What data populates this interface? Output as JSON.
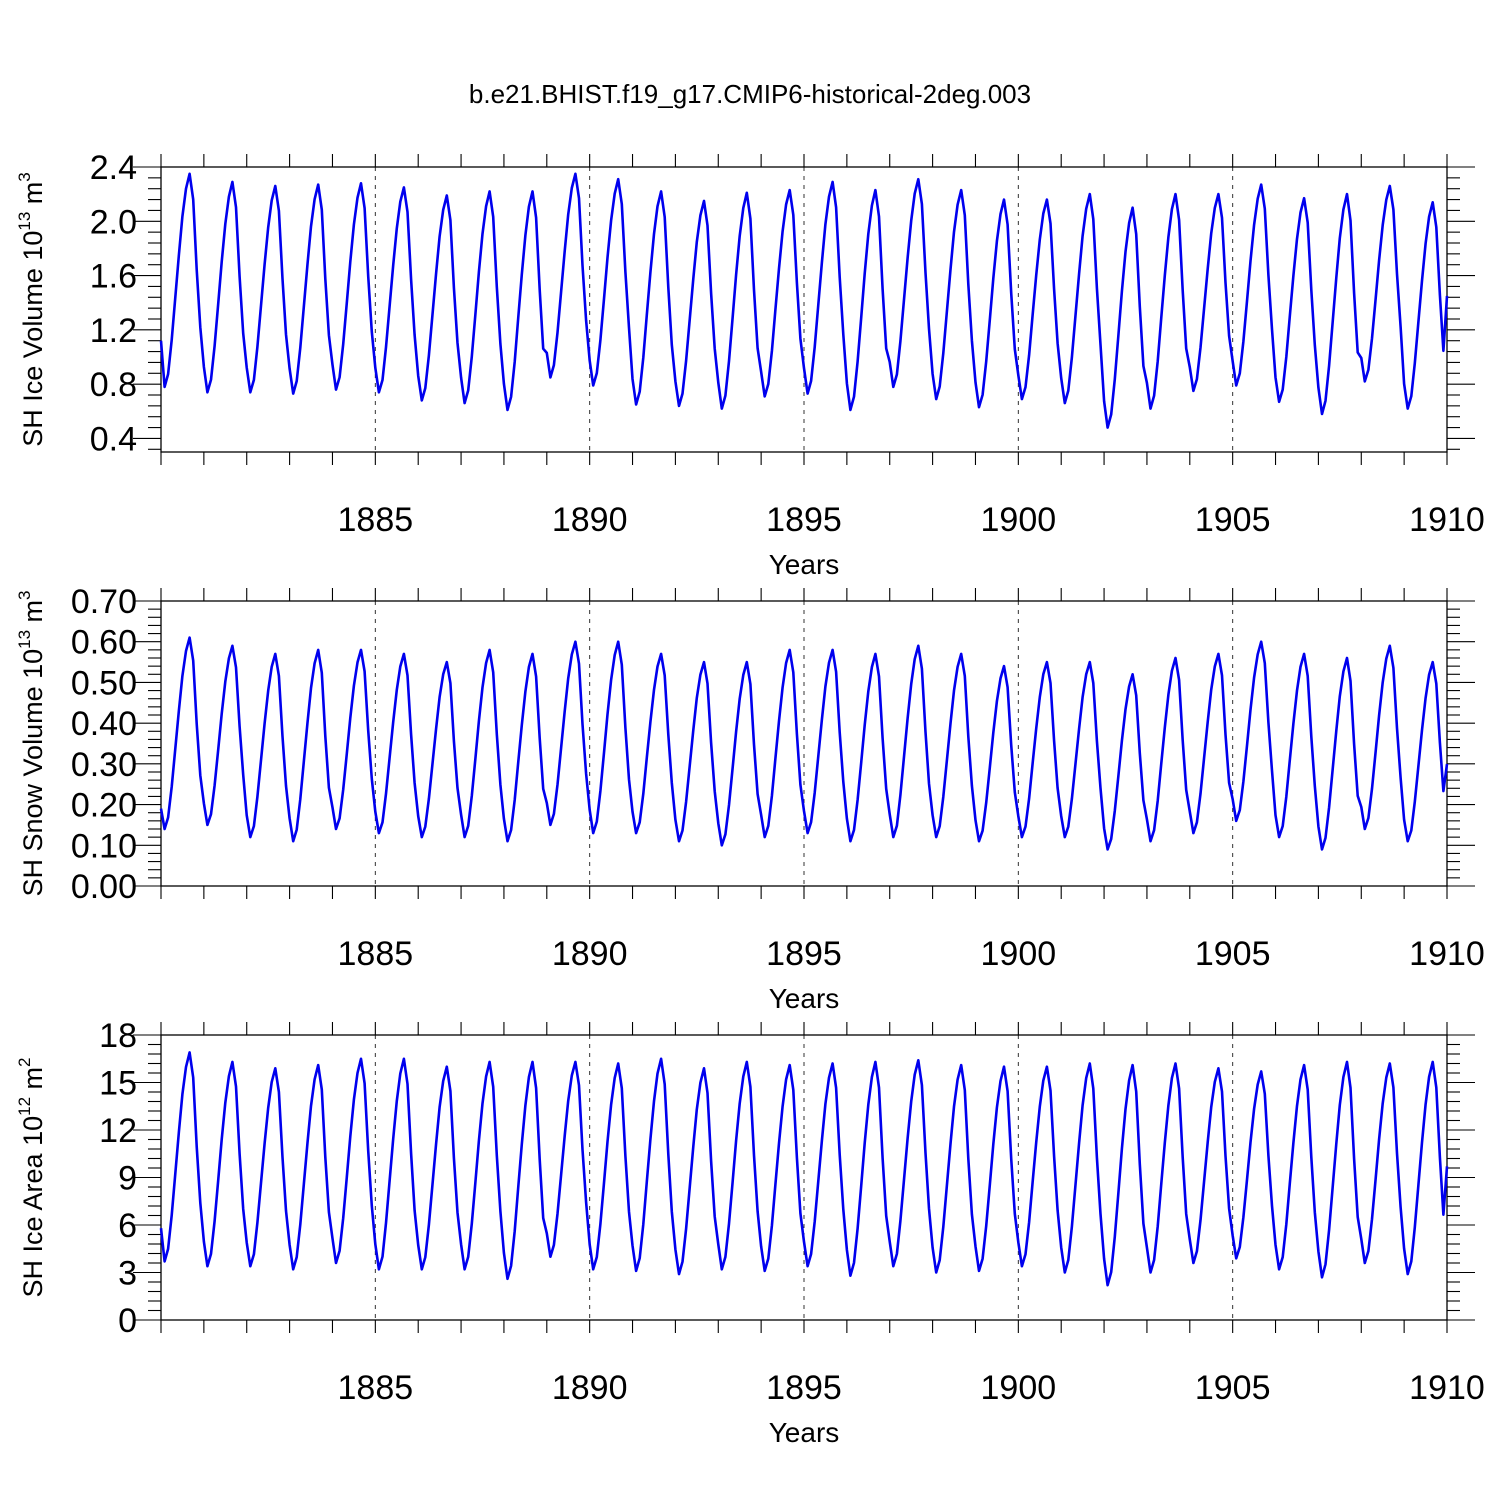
{
  "title": "b.e21.BHIST.f19_g17.CMIP6-historical-2deg.003",
  "chart_data": [
    {
      "type": "line",
      "name": "ice-volume",
      "ylabel": {
        "base": "SH Ice Volume 10",
        "exp": "13",
        "unit": " m",
        "unit_exp": "3"
      },
      "xlabel": "Years",
      "xlim": [
        1880,
        1910
      ],
      "ylim": [
        0.3,
        2.4
      ],
      "yticks": [
        0.4,
        0.8,
        1.2,
        1.6,
        2.0,
        2.4
      ],
      "ytick_labels": [
        "0.4",
        "0.8",
        "1.2",
        "1.6",
        "2.0",
        "2.4"
      ],
      "xticks": [
        1885,
        1890,
        1895,
        1900,
        1905,
        1910
      ],
      "xtick_labels": [
        "1885",
        "1890",
        "1895",
        "1900",
        "1905",
        "1910"
      ],
      "series": [
        {
          "name": "SH ice volume",
          "color": "#0000ee",
          "annual_max": [
            2.35,
            2.29,
            2.26,
            2.27,
            2.28,
            2.25,
            2.19,
            2.22,
            2.22,
            2.35,
            2.31,
            2.22,
            2.15,
            2.21,
            2.23,
            2.29,
            2.23,
            2.31,
            2.23,
            2.16,
            2.16,
            2.2,
            2.1,
            2.2,
            2.2,
            2.27,
            2.17,
            2.2,
            2.26,
            2.14
          ],
          "annual_min": [
            0.78,
            0.74,
            0.74,
            0.73,
            0.76,
            0.74,
            0.68,
            0.66,
            0.61,
            0.85,
            0.79,
            0.65,
            0.64,
            0.62,
            0.71,
            0.73,
            0.61,
            0.78,
            0.69,
            0.63,
            0.69,
            0.66,
            0.48,
            0.62,
            0.75,
            0.79,
            0.67,
            0.58,
            0.82,
            0.62
          ],
          "start_value": 1.12,
          "end_value": 1.45
        }
      ]
    },
    {
      "type": "line",
      "name": "snow-volume",
      "ylabel": {
        "base": "SH Snow Volume 10",
        "exp": "13",
        "unit": " m",
        "unit_exp": "3"
      },
      "xlabel": "Years",
      "xlim": [
        1880,
        1910
      ],
      "ylim": [
        0.0,
        0.7
      ],
      "yticks": [
        0.0,
        0.1,
        0.2,
        0.3,
        0.4,
        0.5,
        0.6,
        0.7
      ],
      "ytick_labels": [
        "0.00",
        "0.10",
        "0.20",
        "0.30",
        "0.40",
        "0.50",
        "0.60",
        "0.70"
      ],
      "xticks": [
        1885,
        1890,
        1895,
        1900,
        1905,
        1910
      ],
      "xtick_labels": [
        "1885",
        "1890",
        "1895",
        "1900",
        "1905",
        "1910"
      ],
      "series": [
        {
          "name": "SH snow volume",
          "color": "#0000ee",
          "annual_max": [
            0.61,
            0.59,
            0.57,
            0.58,
            0.58,
            0.57,
            0.55,
            0.58,
            0.57,
            0.6,
            0.6,
            0.57,
            0.55,
            0.55,
            0.58,
            0.58,
            0.57,
            0.59,
            0.57,
            0.54,
            0.55,
            0.55,
            0.52,
            0.56,
            0.57,
            0.6,
            0.57,
            0.56,
            0.59,
            0.55
          ],
          "annual_min": [
            0.14,
            0.15,
            0.12,
            0.11,
            0.14,
            0.13,
            0.12,
            0.12,
            0.11,
            0.15,
            0.13,
            0.13,
            0.11,
            0.1,
            0.12,
            0.13,
            0.11,
            0.12,
            0.12,
            0.11,
            0.12,
            0.12,
            0.09,
            0.11,
            0.13,
            0.16,
            0.12,
            0.09,
            0.14,
            0.11
          ],
          "start_value": 0.19,
          "end_value": 0.3
        }
      ]
    },
    {
      "type": "line",
      "name": "ice-area",
      "ylabel": {
        "base": "SH Ice Area 10",
        "exp": "12",
        "unit": " m",
        "unit_exp": "2"
      },
      "xlabel": "Years",
      "xlim": [
        1880,
        1910
      ],
      "ylim": [
        0,
        18
      ],
      "yticks": [
        0,
        3,
        6,
        9,
        12,
        15,
        18
      ],
      "ytick_labels": [
        "0",
        "3",
        "6",
        "9",
        "12",
        "15",
        "18"
      ],
      "xticks": [
        1885,
        1890,
        1895,
        1900,
        1905,
        1910
      ],
      "xtick_labels": [
        "1885",
        "1890",
        "1895",
        "1900",
        "1905",
        "1910"
      ],
      "series": [
        {
          "name": "SH ice area",
          "color": "#0000ee",
          "annual_max": [
            16.9,
            16.3,
            15.9,
            16.1,
            16.5,
            16.5,
            16.0,
            16.3,
            16.3,
            16.3,
            16.2,
            16.5,
            15.9,
            16.3,
            16.1,
            16.2,
            16.3,
            16.4,
            16.1,
            16.0,
            16.0,
            16.2,
            16.1,
            16.2,
            15.9,
            15.7,
            16.1,
            16.3,
            16.2,
            16.3
          ],
          "annual_min": [
            3.7,
            3.4,
            3.4,
            3.2,
            3.6,
            3.2,
            3.2,
            3.2,
            2.6,
            4.0,
            3.2,
            3.1,
            2.9,
            3.2,
            3.1,
            3.4,
            2.8,
            3.4,
            3.0,
            3.1,
            3.4,
            3.0,
            2.2,
            3.0,
            3.6,
            3.9,
            3.2,
            2.7,
            3.6,
            2.9
          ],
          "start_value": 5.8,
          "end_value": 9.7
        }
      ]
    }
  ]
}
